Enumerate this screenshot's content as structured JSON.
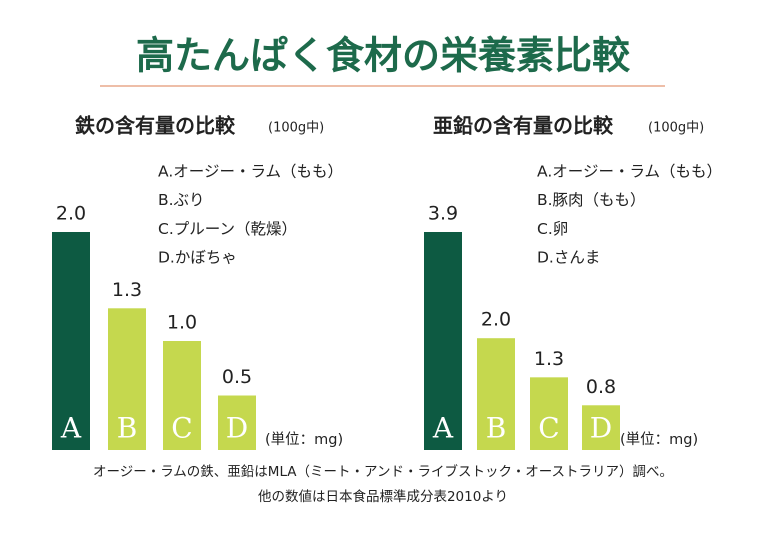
{
  "header": {
    "title": "高たんぱく食材の栄養素比較"
  },
  "chart_data": [
    {
      "type": "bar",
      "title": "鉄の含有量の比較",
      "subtitle": "(100g中)",
      "categories": [
        "A",
        "B",
        "C",
        "D"
      ],
      "legend_items": [
        "A.オージー・ラム（もも）",
        "B.ぶり",
        "C.プルーン（乾燥）",
        "D.かぼちゃ"
      ],
      "values": [
        2.0,
        1.3,
        1.0,
        0.5
      ],
      "value_labels": [
        "2.0",
        "1.3",
        "1.0",
        "0.5"
      ],
      "colors": [
        "#0d5a42",
        "#c5d84e",
        "#c5d84e",
        "#c5d84e"
      ],
      "unit": "(単位：mg)"
    },
    {
      "type": "bar",
      "title": "亜鉛の含有量の比較",
      "subtitle": "(100g中)",
      "categories": [
        "A",
        "B",
        "C",
        "D"
      ],
      "legend_items": [
        "A.オージー・ラム（もも）",
        "B.豚肉（もも）",
        "C.卵",
        "D.さんま"
      ],
      "values": [
        3.9,
        2.0,
        1.3,
        0.8
      ],
      "value_labels": [
        "3.9",
        "2.0",
        "1.3",
        "0.8"
      ],
      "colors": [
        "#0d5a42",
        "#c5d84e",
        "#c5d84e",
        "#c5d84e"
      ],
      "unit": "(単位：mg)"
    }
  ],
  "notes": [
    "オージー・ラムの鉄、亜鉛はMLA（ミート・アンド・ライブストック・オーストラリア）調べ。",
    "他の数値は日本食品標準成分表2010より"
  ]
}
